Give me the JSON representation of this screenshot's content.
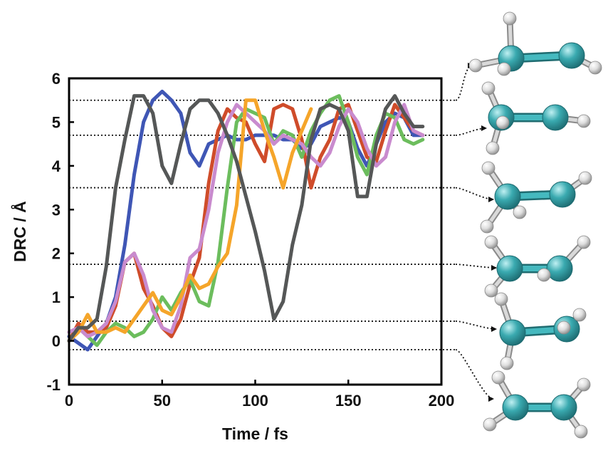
{
  "chart_data": {
    "type": "line",
    "xlabel": "Time / fs",
    "ylabel": "DRC / Å",
    "xlim": [
      0,
      200
    ],
    "ylim": [
      -1,
      6
    ],
    "xticks": [
      "0",
      "50",
      "100",
      "150",
      "200"
    ],
    "yticks": [
      "-1",
      "0",
      "1",
      "2",
      "3",
      "4",
      "5",
      "6"
    ],
    "grid": false,
    "legend": "none",
    "reference_lines": [
      5.5,
      4.7,
      3.5,
      1.75,
      0.45,
      -0.2
    ],
    "reference_line_color": "#111111",
    "series": [
      {
        "color": "#3f56b5",
        "x": [
          0,
          10,
          15,
          20,
          25,
          30,
          35,
          40,
          45,
          50,
          55,
          60,
          65,
          70,
          75,
          80,
          85,
          90,
          95,
          100,
          105,
          110,
          115,
          120,
          125,
          130,
          135,
          140,
          145,
          150,
          155,
          160,
          165,
          170,
          175,
          180,
          185,
          190
        ],
        "y": [
          0.1,
          -0.2,
          0.1,
          0.4,
          1.0,
          2.2,
          3.8,
          5.0,
          5.5,
          5.7,
          5.5,
          5.2,
          4.3,
          4.0,
          4.5,
          4.6,
          4.7,
          4.6,
          4.6,
          4.7,
          4.7,
          4.7,
          4.6,
          4.6,
          4.4,
          4.5,
          4.9,
          5.0,
          5.1,
          5.0,
          4.4,
          4.0,
          4.5,
          5.0,
          5.2,
          5.1,
          4.7,
          4.7
        ]
      },
      {
        "color": "#cf4c2a",
        "x": [
          0,
          5,
          10,
          15,
          20,
          25,
          30,
          35,
          40,
          45,
          50,
          55,
          60,
          65,
          70,
          75,
          80,
          85,
          90,
          95,
          100,
          105,
          110,
          115,
          120,
          125,
          130,
          135,
          140,
          145,
          150,
          155,
          160,
          165,
          170,
          175,
          180,
          185,
          190
        ],
        "y": [
          0.0,
          0.4,
          0.2,
          0.2,
          0.3,
          0.8,
          1.8,
          2.0,
          1.2,
          0.8,
          0.3,
          0.1,
          0.5,
          1.3,
          1.9,
          3.6,
          4.8,
          5.3,
          5.1,
          5.0,
          4.5,
          4.1,
          5.3,
          5.4,
          5.3,
          4.6,
          3.5,
          4.2,
          4.6,
          5.3,
          5.4,
          4.8,
          4.2,
          4.1,
          4.8,
          5.4,
          5.1,
          4.8,
          4.7
        ]
      },
      {
        "color": "#6cbd5d",
        "x": [
          0,
          5,
          10,
          15,
          20,
          25,
          30,
          35,
          40,
          45,
          50,
          55,
          60,
          65,
          70,
          75,
          80,
          85,
          90,
          95,
          100,
          105,
          110,
          115,
          120,
          125,
          130,
          135,
          140,
          145,
          150,
          155,
          160,
          165,
          170,
          175,
          180,
          185,
          190
        ],
        "y": [
          0.0,
          0.3,
          0.1,
          -0.1,
          0.2,
          0.4,
          0.3,
          0.1,
          0.2,
          0.5,
          1.0,
          0.7,
          1.1,
          1.4,
          0.9,
          0.8,
          1.8,
          3.5,
          5.0,
          5.3,
          5.2,
          5.1,
          4.5,
          4.8,
          4.7,
          4.2,
          4.8,
          5.2,
          5.5,
          5.6,
          5.0,
          4.2,
          3.8,
          4.7,
          5.2,
          5.1,
          4.6,
          4.5,
          4.6
        ]
      },
      {
        "color": "#c98bce",
        "x": [
          0,
          5,
          10,
          15,
          20,
          25,
          30,
          35,
          40,
          45,
          50,
          55,
          60,
          65,
          70,
          75,
          80,
          85,
          90,
          95,
          100,
          105,
          110,
          115,
          120,
          125,
          130,
          135,
          140,
          145,
          150,
          155,
          160,
          165,
          170,
          175,
          180,
          185,
          190
        ],
        "y": [
          0.2,
          0.3,
          0.1,
          0.2,
          0.4,
          0.9,
          1.8,
          2.0,
          1.5,
          0.7,
          0.3,
          0.2,
          0.8,
          1.9,
          2.1,
          3.0,
          4.3,
          5.0,
          5.4,
          5.2,
          5.0,
          4.8,
          4.5,
          4.7,
          4.6,
          4.5,
          4.2,
          4.0,
          4.3,
          4.9,
          5.3,
          5.0,
          4.4,
          4.0,
          4.2,
          5.0,
          5.4,
          4.8,
          4.7
        ]
      },
      {
        "color": "#f5a52a",
        "x": [
          0,
          5,
          10,
          15,
          20,
          25,
          30,
          35,
          40,
          45,
          50,
          55,
          60,
          65,
          70,
          75,
          80,
          85,
          90,
          95,
          100,
          105,
          110,
          115,
          120,
          125,
          130
        ],
        "y": [
          0.0,
          0.2,
          0.6,
          0.2,
          0.2,
          0.3,
          0.2,
          0.5,
          0.8,
          1.1,
          0.7,
          0.6,
          1.0,
          1.5,
          1.2,
          1.3,
          1.7,
          2.0,
          3.1,
          5.5,
          5.5,
          4.8,
          4.2,
          3.5,
          4.3,
          4.8,
          5.3
        ]
      },
      {
        "color": "#555757",
        "x": [
          0,
          5,
          10,
          15,
          20,
          25,
          30,
          35,
          40,
          45,
          50,
          55,
          60,
          65,
          70,
          75,
          80,
          85,
          90,
          95,
          100,
          105,
          110,
          115,
          120,
          125,
          130,
          135,
          140,
          145,
          150,
          155,
          160,
          165,
          170,
          175,
          180,
          185,
          190
        ],
        "y": [
          0.0,
          0.3,
          0.3,
          0.5,
          1.7,
          3.5,
          4.6,
          5.6,
          5.6,
          5.2,
          4.0,
          3.6,
          4.5,
          5.3,
          5.5,
          5.5,
          5.2,
          4.7,
          4.1,
          3.3,
          2.5,
          1.6,
          0.5,
          0.9,
          2.2,
          3.1,
          4.6,
          5.3,
          5.4,
          5.3,
          4.8,
          3.3,
          3.3,
          4.5,
          5.3,
          5.6,
          5.2,
          4.9,
          4.9
        ]
      }
    ]
  },
  "molecules": [
    {
      "name": "structure-1"
    },
    {
      "name": "structure-2"
    },
    {
      "name": "structure-3"
    },
    {
      "name": "structure-4"
    },
    {
      "name": "structure-5"
    },
    {
      "name": "structure-6"
    }
  ],
  "colors": {
    "carbon": "#3aaab0",
    "hydrogen": "#dcdcdc",
    "axis": "#000000"
  }
}
